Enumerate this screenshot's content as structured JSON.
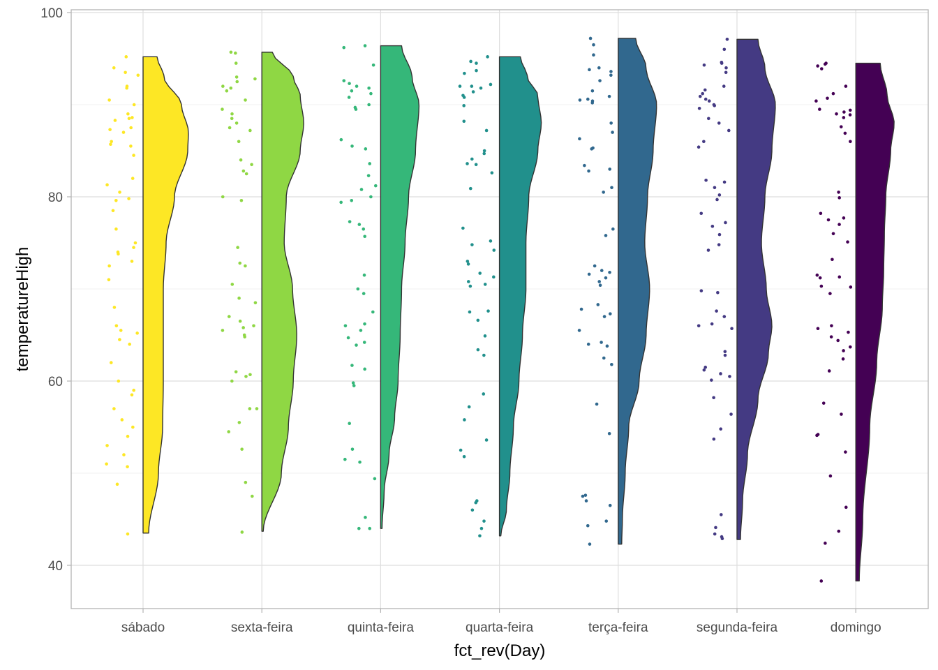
{
  "chart_data": {
    "type": "raincloud",
    "xlabel": "fct_rev(Day)",
    "ylabel": "temperatureHigh",
    "ylim": [
      35,
      100
    ],
    "yticks": [
      40,
      60,
      80,
      100
    ],
    "grid": true,
    "categories": [
      "sábado",
      "sexta-feira",
      "quinta-feira",
      "quarta-feira",
      "terça-feira",
      "segunda-feira",
      "domingo"
    ],
    "colors": [
      "#FDE725",
      "#8FD744",
      "#35B779",
      "#21908C",
      "#31688E",
      "#443A83",
      "#440154"
    ],
    "series": [
      {
        "range": [
          43.5,
          95.2
        ],
        "density": [
          [
            43.5,
            0.08
          ],
          [
            50,
            0.22
          ],
          [
            55,
            0.28
          ],
          [
            60,
            0.29
          ],
          [
            65,
            0.29
          ],
          [
            70,
            0.29
          ],
          [
            75,
            0.33
          ],
          [
            80,
            0.45
          ],
          [
            85,
            0.64
          ],
          [
            87,
            0.65
          ],
          [
            90,
            0.55
          ],
          [
            93,
            0.3
          ],
          [
            95.2,
            0.2
          ]
        ],
        "points": [
          95.2,
          94,
          93.5,
          93.2,
          92,
          91.8,
          90.5,
          90,
          89,
          88.6,
          88.5,
          88.3,
          87.5,
          87.3,
          87,
          86,
          85.7,
          85.5,
          84.5,
          82,
          81.3,
          80.5,
          79.8,
          79.6,
          78.5,
          76.5,
          75,
          74.5,
          74,
          73.8,
          73,
          72.5,
          71,
          68,
          66,
          65.5,
          65.2,
          64.5,
          64,
          62,
          60,
          59,
          58.5,
          57,
          55.8,
          55,
          54,
          53,
          52,
          51,
          50.7,
          48.8,
          43.4
        ]
      },
      {
        "range": [
          43.7,
          95.7
        ],
        "density": [
          [
            43.7,
            0.02
          ],
          [
            50,
            0.28
          ],
          [
            55,
            0.38
          ],
          [
            60,
            0.45
          ],
          [
            65,
            0.5
          ],
          [
            70,
            0.44
          ],
          [
            75,
            0.32
          ],
          [
            80,
            0.35
          ],
          [
            85,
            0.55
          ],
          [
            88,
            0.6
          ],
          [
            91,
            0.55
          ],
          [
            93,
            0.45
          ],
          [
            95.7,
            0.15
          ]
        ],
        "points": [
          95.7,
          95.6,
          94.5,
          93,
          92.8,
          92.5,
          92,
          91.8,
          91.5,
          90.5,
          89.5,
          89,
          88.5,
          88,
          87.5,
          87.2,
          86,
          84,
          83.5,
          82.8,
          82.5,
          80,
          79.6,
          74.5,
          72.8,
          72.5,
          70.5,
          69,
          68.5,
          67,
          66.5,
          66,
          65.8,
          65.5,
          65,
          64.8,
          61,
          60.7,
          60.5,
          60,
          57,
          57,
          55.5,
          54.5,
          52.6,
          49,
          47.5,
          43.6
        ]
      },
      {
        "range": [
          44,
          96.4
        ],
        "density": [
          [
            44,
            0.02
          ],
          [
            48,
            0.05
          ],
          [
            52,
            0.12
          ],
          [
            56,
            0.2
          ],
          [
            60,
            0.25
          ],
          [
            65,
            0.28
          ],
          [
            70,
            0.3
          ],
          [
            75,
            0.35
          ],
          [
            80,
            0.4
          ],
          [
            85,
            0.5
          ],
          [
            90,
            0.55
          ],
          [
            93,
            0.45
          ],
          [
            96.4,
            0.3
          ]
        ],
        "points": [
          96.4,
          96.2,
          94.3,
          92.6,
          92.3,
          92,
          91.8,
          91.5,
          91.2,
          90.8,
          90,
          89.7,
          89.5,
          86.2,
          85.5,
          85.2,
          83.6,
          82.3,
          81.2,
          80.8,
          80,
          79.6,
          79.4,
          77.3,
          77,
          76.5,
          75.7,
          71.5,
          70,
          69.5,
          67.5,
          66.2,
          66,
          65.5,
          64.7,
          64.2,
          63.9,
          61.7,
          61.3,
          59.8,
          59.5,
          55.4,
          52.6,
          51.5,
          51.2,
          49.4,
          45.2,
          44,
          44
        ]
      },
      {
        "range": [
          43.2,
          95.2
        ],
        "density": [
          [
            43.2,
            0.02
          ],
          [
            46,
            0.1
          ],
          [
            50,
            0.15
          ],
          [
            55,
            0.2
          ],
          [
            60,
            0.28
          ],
          [
            65,
            0.33
          ],
          [
            70,
            0.38
          ],
          [
            75,
            0.38
          ],
          [
            80,
            0.42
          ],
          [
            85,
            0.55
          ],
          [
            88,
            0.6
          ],
          [
            91,
            0.55
          ],
          [
            93,
            0.4
          ],
          [
            95.2,
            0.3
          ]
        ],
        "points": [
          95.2,
          94.7,
          94.5,
          93.7,
          93.4,
          92.2,
          92,
          92,
          91.8,
          91.4,
          91,
          90.8,
          89.9,
          88.2,
          87.2,
          85,
          84.7,
          84.1,
          83.6,
          83.5,
          82.6,
          80.9,
          76.6,
          75.2,
          74.8,
          74.2,
          73,
          72.7,
          71.7,
          71.3,
          70.8,
          70.5,
          70.3,
          67.6,
          67.5,
          66.6,
          64.9,
          63.4,
          62.8,
          58.6,
          57.2,
          55.8,
          53.6,
          52.5,
          51.8,
          47,
          46.8,
          46,
          44.8,
          44,
          43.2
        ]
      },
      {
        "range": [
          42.3,
          97.2
        ],
        "density": [
          [
            42.3,
            0.05
          ],
          [
            45,
            0.06
          ],
          [
            50,
            0.1
          ],
          [
            55,
            0.15
          ],
          [
            60,
            0.3
          ],
          [
            65,
            0.4
          ],
          [
            70,
            0.45
          ],
          [
            75,
            0.38
          ],
          [
            80,
            0.42
          ],
          [
            85,
            0.5
          ],
          [
            90,
            0.55
          ],
          [
            94,
            0.4
          ],
          [
            97.2,
            0.25
          ]
        ],
        "points": [
          97.2,
          96.5,
          95.4,
          94,
          93.8,
          93.6,
          93.2,
          92.6,
          91.5,
          90.9,
          90.6,
          90.5,
          90.4,
          90.2,
          88,
          87,
          86.3,
          85.3,
          85.2,
          83.4,
          83,
          82.8,
          81,
          80.5,
          76.5,
          75.8,
          72.5,
          72,
          71.8,
          71.6,
          71.2,
          70.8,
          70.4,
          68.3,
          67.8,
          67.3,
          67,
          65.5,
          64.2,
          64,
          63.8,
          62.5,
          61.8,
          57.5,
          54.3,
          47.6,
          47.5,
          47,
          46.5,
          44.8,
          44.3,
          42.3
        ]
      },
      {
        "range": [
          42.8,
          97.1
        ],
        "density": [
          [
            42.8,
            0.05
          ],
          [
            47,
            0.08
          ],
          [
            52,
            0.15
          ],
          [
            58,
            0.3
          ],
          [
            63,
            0.45
          ],
          [
            66,
            0.5
          ],
          [
            70,
            0.42
          ],
          [
            75,
            0.35
          ],
          [
            80,
            0.4
          ],
          [
            85,
            0.5
          ],
          [
            90,
            0.55
          ],
          [
            94,
            0.4
          ],
          [
            97.1,
            0.3
          ]
        ],
        "points": [
          97.1,
          96,
          94.6,
          94.5,
          94.3,
          94,
          93.5,
          92,
          91.6,
          91.2,
          90.9,
          90.6,
          90.4,
          90,
          89.9,
          89.6,
          88.5,
          88,
          87.2,
          86,
          85.4,
          81.8,
          81.6,
          81,
          80.2,
          79.7,
          78.2,
          77.2,
          76.8,
          75.9,
          74.8,
          74.2,
          69.8,
          69.6,
          67.6,
          67,
          66.2,
          66,
          65.7,
          63.2,
          62.8,
          61.5,
          61.2,
          60.8,
          60.5,
          60.1,
          58.2,
          56.4,
          54.8,
          53.7,
          45.5,
          44.1,
          43.4,
          43.1,
          42.9
        ]
      },
      {
        "range": [
          38.3,
          94.5
        ],
        "density": [
          [
            38.3,
            0.05
          ],
          [
            45,
            0.1
          ],
          [
            55,
            0.2
          ],
          [
            62,
            0.3
          ],
          [
            68,
            0.38
          ],
          [
            72,
            0.4
          ],
          [
            76,
            0.41
          ],
          [
            80,
            0.43
          ],
          [
            85,
            0.5
          ],
          [
            88,
            0.55
          ],
          [
            91,
            0.45
          ],
          [
            94.5,
            0.35
          ]
        ],
        "points": [
          94.5,
          94.4,
          94.2,
          93.9,
          92,
          91.2,
          90.7,
          90.4,
          89.5,
          89.4,
          89.2,
          89,
          88.9,
          88.6,
          87.6,
          86.9,
          86,
          80.5,
          79.9,
          78.2,
          77.7,
          77.5,
          77,
          76,
          75.1,
          73.2,
          71.5,
          71.3,
          71.2,
          70.3,
          70.2,
          69.5,
          66,
          65.7,
          65.3,
          64.8,
          64.4,
          63.7,
          63.3,
          62.4,
          61.1,
          57.6,
          56.4,
          54.2,
          54.1,
          52.3,
          49.7,
          46.3,
          43.7,
          42.4,
          38.3
        ]
      }
    ]
  }
}
